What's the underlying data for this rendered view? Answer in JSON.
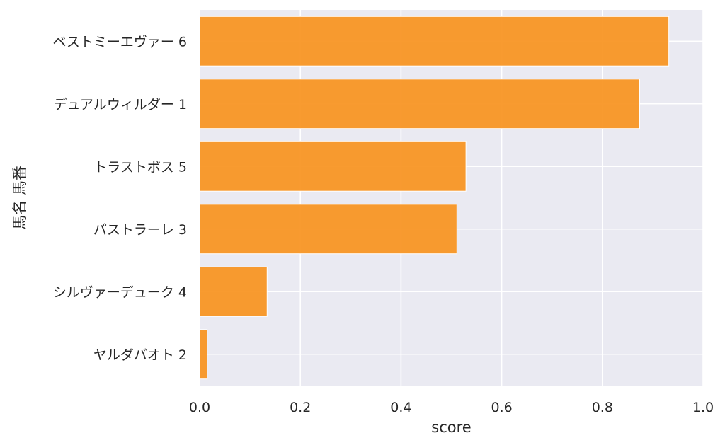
{
  "chart_data": {
    "type": "bar",
    "orientation": "horizontal",
    "categories": [
      "ベストミーエヴァー 6",
      "デュアルウィルダー 1",
      "トラストボス 5",
      "パストラーレ 3",
      "シルヴァーデューク 4",
      "ヤルダバオト 2"
    ],
    "values": [
      0.932,
      0.874,
      0.529,
      0.511,
      0.134,
      0.015
    ],
    "xlabel": "score",
    "ylabel": "馬名 馬番",
    "xlim": [
      0.0,
      1.0
    ],
    "xticks": [
      "0.0",
      "0.2",
      "0.4",
      "0.6",
      "0.8",
      "1.0"
    ],
    "grid": true,
    "colors": {
      "bar": "#f7931e",
      "background": "#eaeaf2",
      "grid": "#ffffff"
    }
  }
}
